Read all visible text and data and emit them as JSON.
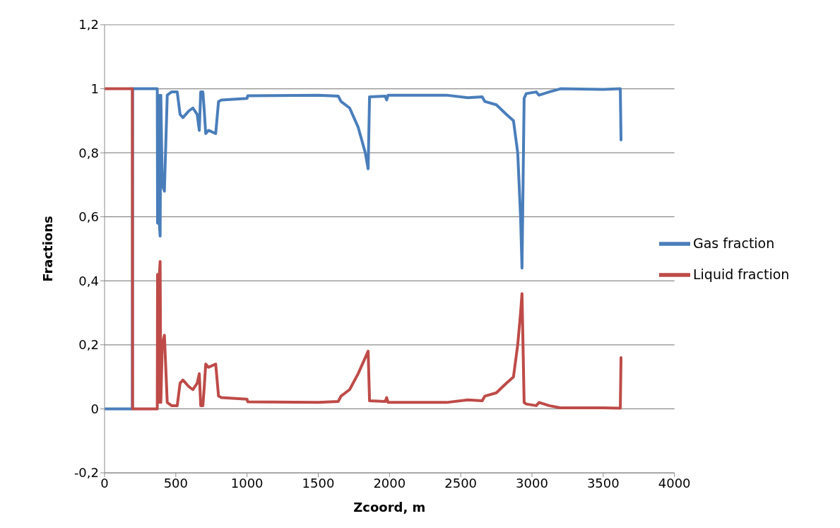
{
  "chart_data": {
    "type": "line",
    "xlabel": "Zcoord, m",
    "ylabel": "Fractions",
    "xlim": [
      0,
      4000
    ],
    "xticks": [
      0,
      500,
      1000,
      1500,
      2000,
      2500,
      3000,
      3500,
      4000
    ],
    "ylim": [
      -0.2,
      1.2
    ],
    "yticks": [
      {
        "value": -0.2,
        "label": "-0,2"
      },
      0,
      {
        "value": 0.2,
        "label": "0,2"
      },
      {
        "value": 0.4,
        "label": "0,4"
      },
      {
        "value": 0.6,
        "label": "0,6"
      },
      {
        "value": 0.8,
        "label": "0,8"
      },
      1,
      {
        "value": 1.2,
        "label": "1,2"
      }
    ],
    "grid": "y",
    "legend": "right",
    "marker": "none",
    "line_style": "solid",
    "series": [
      {
        "name": "Gas fraction",
        "color": "#4a7ebb",
        "x": [
          0,
          195,
          197,
          370,
          372,
          380,
          385,
          390,
          395,
          405,
          420,
          440,
          470,
          510,
          530,
          550,
          570,
          590,
          620,
          650,
          665,
          675,
          690,
          700,
          710,
          730,
          780,
          800,
          820,
          1000,
          1005,
          1500,
          1640,
          1660,
          1720,
          1780,
          1830,
          1850,
          1860,
          1970,
          1980,
          1990,
          2200,
          2400,
          2550,
          2650,
          2670,
          2750,
          2820,
          2870,
          2900,
          2920,
          2930,
          2945,
          2960,
          3030,
          3050,
          3120,
          3200,
          3500,
          3620,
          3625
        ],
        "values": [
          0,
          0,
          1,
          1,
          0.58,
          0.98,
          0.58,
          0.54,
          0.98,
          0.7,
          0.68,
          0.98,
          0.99,
          0.99,
          0.92,
          0.91,
          0.92,
          0.93,
          0.94,
          0.92,
          0.87,
          0.99,
          0.99,
          0.93,
          0.86,
          0.87,
          0.86,
          0.96,
          0.965,
          0.97,
          0.978,
          0.98,
          0.977,
          0.96,
          0.94,
          0.88,
          0.8,
          0.75,
          0.975,
          0.977,
          0.965,
          0.98,
          0.98,
          0.98,
          0.972,
          0.975,
          0.96,
          0.95,
          0.92,
          0.9,
          0.8,
          0.6,
          0.44,
          0.97,
          0.985,
          0.99,
          0.98,
          0.99,
          1,
          0.998,
          1,
          0.84
        ]
      },
      {
        "name": "Liquid fraction",
        "color": "#be4b48",
        "x": [
          0,
          195,
          197,
          370,
          372,
          380,
          385,
          390,
          395,
          405,
          420,
          440,
          470,
          510,
          530,
          550,
          570,
          590,
          620,
          650,
          665,
          675,
          690,
          700,
          710,
          730,
          780,
          800,
          820,
          1000,
          1005,
          1500,
          1640,
          1660,
          1720,
          1780,
          1830,
          1850,
          1860,
          1970,
          1980,
          1990,
          2200,
          2400,
          2550,
          2650,
          2670,
          2750,
          2820,
          2870,
          2900,
          2920,
          2930,
          2945,
          2960,
          3030,
          3050,
          3120,
          3200,
          3500,
          3620,
          3625
        ],
        "values": [
          1,
          1,
          0,
          0,
          0.42,
          0.02,
          0.42,
          0.46,
          0.02,
          0.2,
          0.23,
          0.02,
          0.01,
          0.01,
          0.08,
          0.09,
          0.08,
          0.07,
          0.06,
          0.08,
          0.11,
          0.01,
          0.01,
          0.07,
          0.14,
          0.13,
          0.14,
          0.04,
          0.035,
          0.03,
          0.022,
          0.02,
          0.023,
          0.04,
          0.06,
          0.11,
          0.16,
          0.18,
          0.025,
          0.023,
          0.035,
          0.02,
          0.02,
          0.02,
          0.028,
          0.025,
          0.04,
          0.05,
          0.08,
          0.1,
          0.2,
          0.3,
          0.36,
          0.02,
          0.015,
          0.01,
          0.02,
          0.01,
          0.003,
          0.003,
          0.002,
          0.16
        ]
      }
    ]
  }
}
